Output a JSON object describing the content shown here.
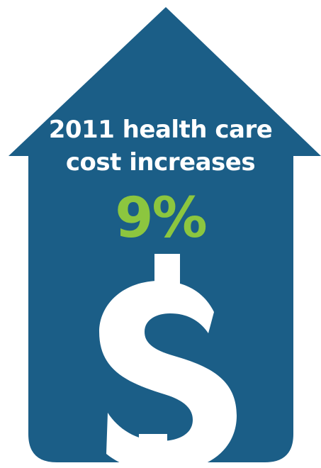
{
  "graphic": {
    "headline_line1": "2011 health care",
    "headline_line2": "cost increases",
    "percent": "9%",
    "icon": "dollar-sign-icon"
  },
  "colors": {
    "house_blue": "#1B5E87",
    "accent_green": "#8CC63F",
    "text_white": "#FFFFFF"
  }
}
